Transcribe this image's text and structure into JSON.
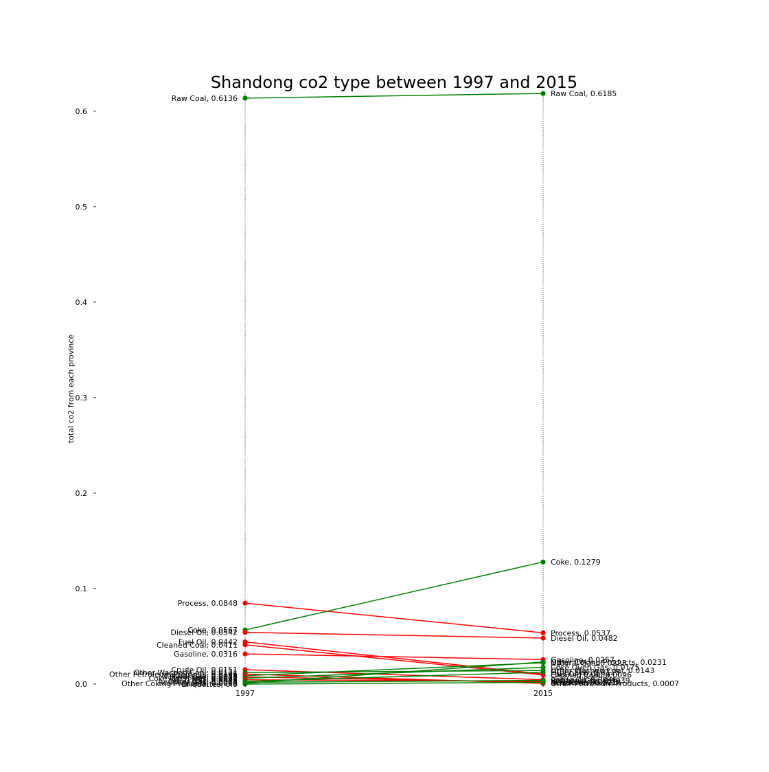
{
  "chart_data": {
    "type": "line",
    "title": "Shandong co2 type between 1997 and 2015",
    "xlabel": "",
    "ylabel": "total co2 from each province",
    "ylim": [
      0.0,
      0.62
    ],
    "yticks": [
      "0.0",
      "0.1",
      "0.2",
      "0.3",
      "0.4",
      "0.5",
      "0.6"
    ],
    "x": [
      "1997",
      "2015"
    ],
    "grid": false,
    "colors": {
      "increase": "#008000",
      "decrease": "#ff0000",
      "guide": "#444444",
      "axis": "#222222"
    },
    "series": [
      {
        "name": "Raw Coal",
        "values": [
          0.6136,
          0.6185
        ],
        "label_1997": "Raw Coal, 0.6136",
        "label_2015": "Raw Coal, 0.6185"
      },
      {
        "name": "Process",
        "values": [
          0.0848,
          0.0537
        ],
        "label_1997": "Process, 0.0848",
        "label_2015": "Process, 0.0537"
      },
      {
        "name": "Coke",
        "values": [
          0.0567,
          0.1279
        ],
        "label_1997": "Coke, 0.0567",
        "label_2015": "Coke, 0.1279"
      },
      {
        "name": "Diesel Oil",
        "values": [
          0.0542,
          0.0482
        ],
        "label_1997": "Diesel Oil, 0.0542",
        "label_2015": "Diesel Oil, 0.0482"
      },
      {
        "name": "Fuel Oil",
        "values": [
          0.0442,
          0.0104
        ],
        "label_1997": "Fuel Oil, 0.0442",
        "label_2015": "Fuel Oil, 0.0104"
      },
      {
        "name": "Cleaned Coal",
        "values": [
          0.0411,
          0.0096
        ],
        "label_1997": "Cleaned Coal, 0.0411",
        "label_2015": "Cleaned Coal, 0.0096"
      },
      {
        "name": "Gasoline",
        "values": [
          0.0316,
          0.0257
        ],
        "label_1997": "Gasoline, 0.0316",
        "label_2015": "Gasoline, 0.0257"
      },
      {
        "name": "Crude Oil",
        "values": [
          0.0151,
          0.0046
        ],
        "label_1997": "Crude Oil, 0.0151",
        "label_2015": "Crude Oil, 0.0046"
      },
      {
        "name": "Other Washed Coal",
        "values": [
          0.0121,
          0.0143
        ],
        "label_1997": "Other Washed Coal, 0.0121",
        "label_2015": "Other Washed Coal, 0.0143"
      },
      {
        "name": "Other Petroleum Products",
        "values": [
          0.0105,
          0.0007
        ],
        "label_1997": "Other Petroleum Products, 0.0105",
        "label_2015": "Other Petroleum Products, 0.0007"
      },
      {
        "name": "Natural Gas",
        "values": [
          0.0088,
          0.0223
        ],
        "label_1997": "Natural Gas, 0.0088",
        "label_2015": "Natural Gas, 0.0223"
      },
      {
        "name": "Kerosene",
        "values": [
          0.0075,
          0.0021
        ],
        "label_1997": "Kerosene, 0.0075",
        "label_2015": "Kerosene, 0.0021"
      },
      {
        "name": "Coke Oven Gas",
        "values": [
          0.0061,
          0.0175
        ],
        "label_1997": "Coke Oven Gas, 0.0061",
        "label_2015": "Coke Oven Gas, 0.0175"
      },
      {
        "name": "LPG",
        "values": [
          0.0045,
          0.0031
        ],
        "label_1997": "LPG, 0.0045",
        "label_2015": "LPG, 0.0031"
      },
      {
        "name": "Other Gas",
        "values": [
          0.0028,
          0.0125
        ],
        "label_1997": "Other Gas, 0.0028",
        "label_2015": "Other Gas, 0.0125"
      },
      {
        "name": "Refinery Gas",
        "values": [
          0.0019,
          0.0039
        ],
        "label_1997": "Refinery Gas, 0.0019",
        "label_2015": "Refinery Gas, 0.0039"
      },
      {
        "name": "Other Coking Products",
        "values": [
          0.0008,
          0.0231
        ],
        "label_1997": "Other Coking Products, 0.0008",
        "label_2015": "Other Coking Products, 0.0231"
      },
      {
        "name": "Briquettes",
        "values": [
          0.0,
          0.0018
        ],
        "label_1997": "Briquettes, 0.0",
        "label_2015": "Briquettes, 0.0018"
      }
    ]
  }
}
